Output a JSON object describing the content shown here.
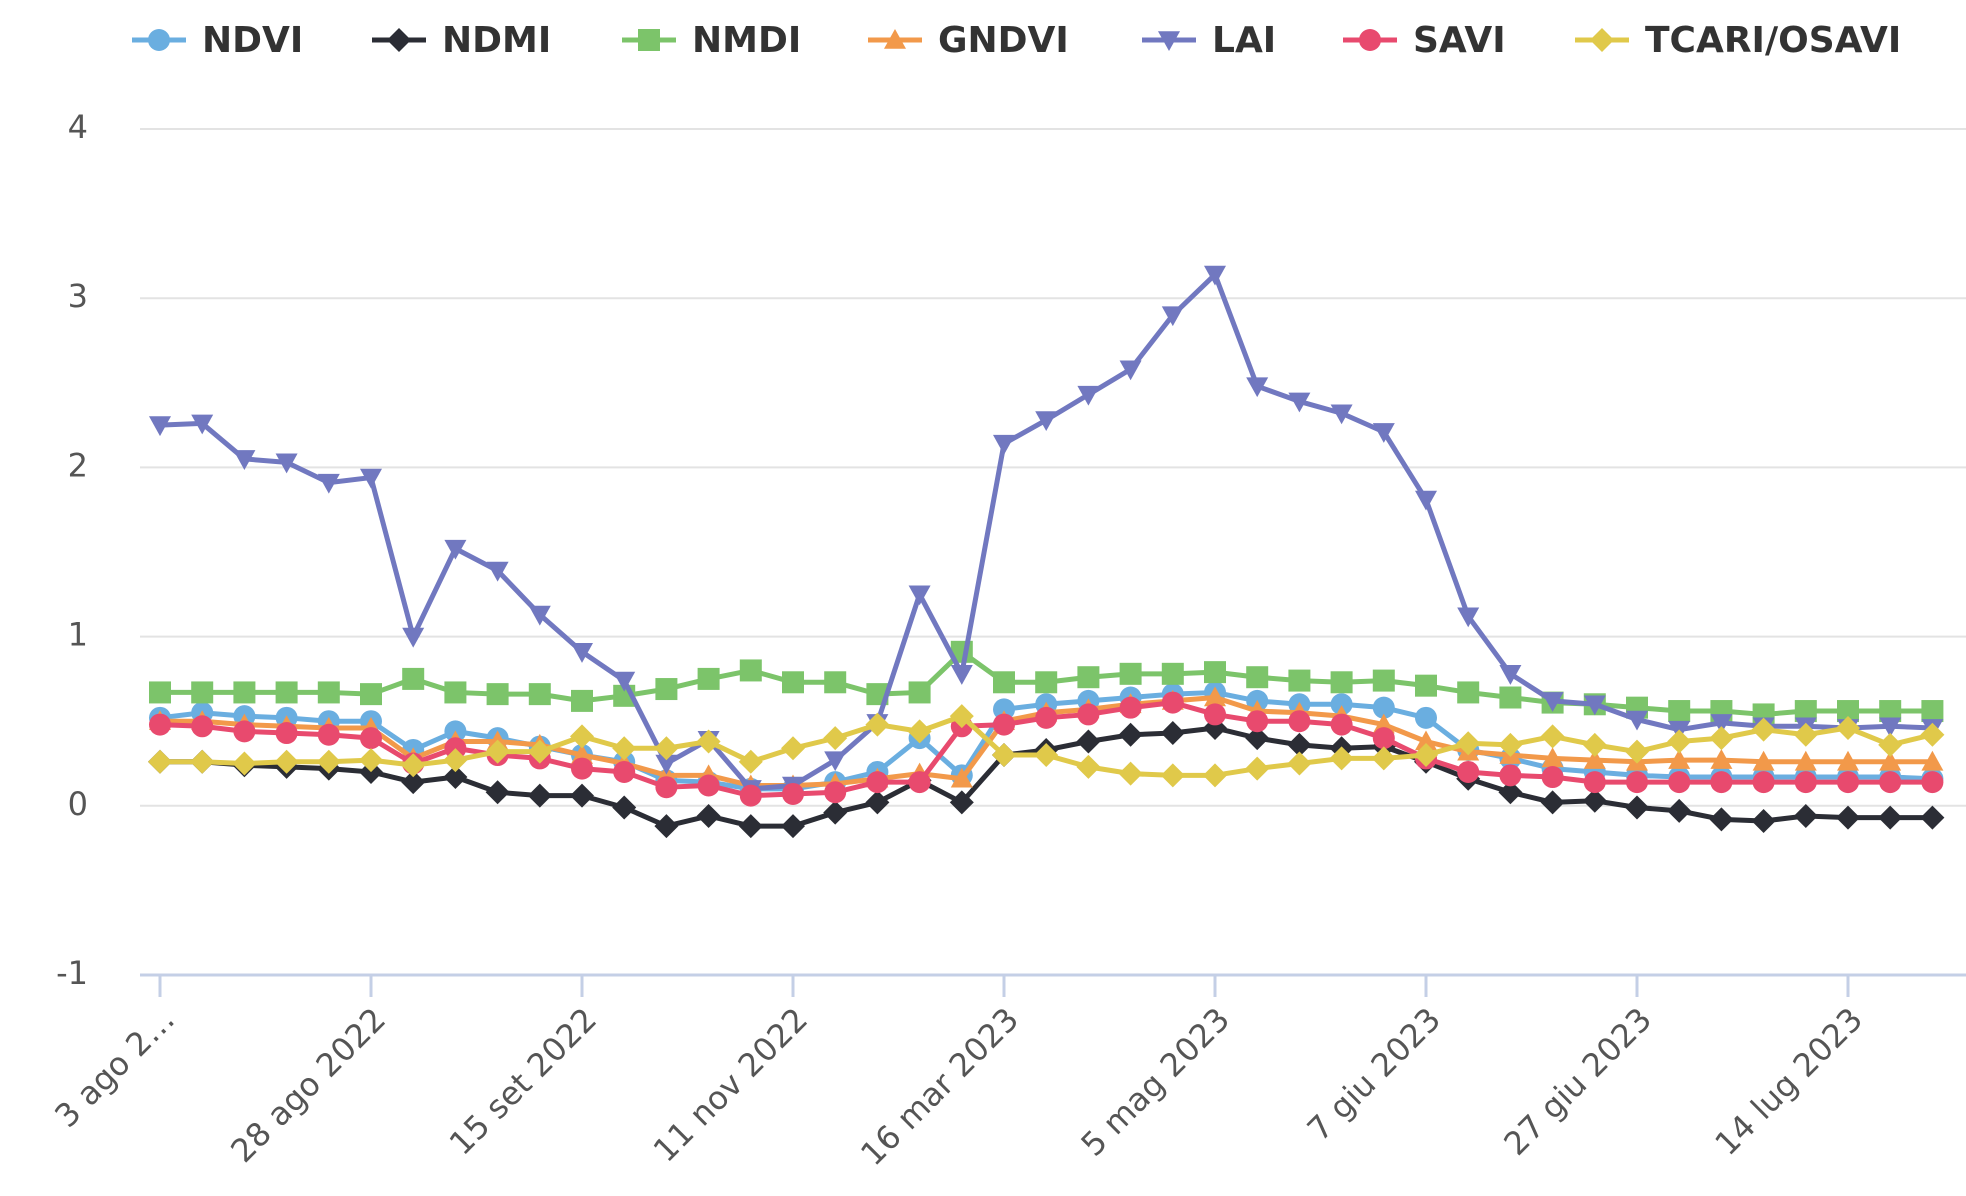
{
  "chart_data": {
    "type": "line",
    "categories": [
      "3 ago 2…",
      null,
      null,
      null,
      null,
      "28 ago 2022",
      null,
      null,
      null,
      null,
      "15 set 2022",
      null,
      null,
      null,
      null,
      "11 nov 2022",
      null,
      null,
      null,
      null,
      "16 mar 2023",
      null,
      null,
      null,
      null,
      "5 mag 2023",
      null,
      null,
      null,
      null,
      "7 giu 2023",
      null,
      null,
      null,
      null,
      "27 giu 2023",
      null,
      null,
      null,
      null,
      "14 lug 2023",
      null,
      null
    ],
    "ylim": [
      -1,
      4
    ],
    "yticks": [
      -1,
      0,
      1,
      2,
      3,
      4
    ],
    "grid": true,
    "legend": "top",
    "series": [
      {
        "name": "NDVI",
        "color": "#6aaee0",
        "marker": "circle",
        "values": [
          0.52,
          0.55,
          0.53,
          0.52,
          0.5,
          0.5,
          0.33,
          0.44,
          0.4,
          0.35,
          0.3,
          0.26,
          0.15,
          0.14,
          0.1,
          0.1,
          0.14,
          0.2,
          0.4,
          0.18,
          0.57,
          0.6,
          0.62,
          0.64,
          0.66,
          0.67,
          0.62,
          0.6,
          0.6,
          0.58,
          0.52,
          0.33,
          0.28,
          0.22,
          0.2,
          0.18,
          0.17,
          0.17,
          0.17,
          0.17,
          0.17,
          0.17,
          0.16
        ]
      },
      {
        "name": "NDMI",
        "color": "#2b2d35",
        "marker": "diamond",
        "values": [
          0.26,
          0.26,
          0.24,
          0.23,
          0.22,
          0.2,
          0.14,
          0.17,
          0.08,
          0.06,
          0.06,
          -0.01,
          -0.12,
          -0.06,
          -0.12,
          -0.12,
          -0.04,
          0.02,
          0.15,
          0.02,
          0.3,
          0.33,
          0.38,
          0.42,
          0.43,
          0.46,
          0.4,
          0.36,
          0.34,
          0.35,
          0.26,
          0.16,
          0.08,
          0.02,
          0.03,
          -0.01,
          -0.03,
          -0.08,
          -0.09,
          -0.06,
          -0.07,
          -0.07,
          -0.07
        ]
      },
      {
        "name": "NMDI",
        "color": "#7cc46a",
        "marker": "square",
        "values": [
          0.67,
          0.67,
          0.67,
          0.67,
          0.67,
          0.66,
          0.75,
          0.67,
          0.66,
          0.66,
          0.62,
          0.65,
          0.69,
          0.75,
          0.8,
          0.73,
          0.73,
          0.66,
          0.67,
          0.91,
          0.73,
          0.73,
          0.76,
          0.78,
          0.78,
          0.79,
          0.76,
          0.74,
          0.73,
          0.74,
          0.71,
          0.67,
          0.64,
          0.61,
          0.6,
          0.58,
          0.56,
          0.56,
          0.54,
          0.56,
          0.56,
          0.56,
          0.56
        ]
      },
      {
        "name": "GNDVI",
        "color": "#f2994a",
        "marker": "triangle",
        "values": [
          0.5,
          0.5,
          0.48,
          0.47,
          0.46,
          0.46,
          0.28,
          0.38,
          0.38,
          0.36,
          0.3,
          0.25,
          0.18,
          0.18,
          0.12,
          0.12,
          0.13,
          0.16,
          0.19,
          0.16,
          0.5,
          0.55,
          0.57,
          0.6,
          0.62,
          0.64,
          0.56,
          0.55,
          0.53,
          0.48,
          0.38,
          0.32,
          0.3,
          0.28,
          0.27,
          0.26,
          0.27,
          0.27,
          0.26,
          0.26,
          0.26,
          0.26,
          0.26
        ]
      },
      {
        "name": "LAI",
        "color": "#7178c0",
        "marker": "triangle-down",
        "values": [
          2.25,
          2.26,
          2.05,
          2.03,
          1.91,
          1.94,
          1.0,
          1.52,
          1.39,
          1.13,
          0.91,
          0.74,
          0.25,
          0.39,
          0.1,
          0.12,
          0.27,
          0.49,
          1.25,
          0.78,
          2.14,
          2.28,
          2.43,
          2.58,
          2.9,
          3.14,
          2.48,
          2.39,
          2.32,
          2.21,
          1.81,
          1.12,
          0.78,
          0.62,
          0.6,
          0.51,
          0.45,
          0.49,
          0.47,
          0.47,
          0.46,
          0.47,
          0.46
        ]
      },
      {
        "name": "SAVI",
        "color": "#e84a6e",
        "marker": "circle",
        "values": [
          0.48,
          0.47,
          0.44,
          0.43,
          0.42,
          0.4,
          0.25,
          0.34,
          0.3,
          0.28,
          0.22,
          0.2,
          0.11,
          0.12,
          0.06,
          0.07,
          0.08,
          0.14,
          0.14,
          0.47,
          0.48,
          0.52,
          0.54,
          0.58,
          0.61,
          0.54,
          0.5,
          0.5,
          0.48,
          0.4,
          0.28,
          0.2,
          0.18,
          0.17,
          0.14,
          0.14,
          0.14,
          0.14,
          0.14,
          0.14,
          0.14,
          0.14,
          0.14
        ]
      },
      {
        "name": "TCARI/OSAVI",
        "color": "#e0c94a",
        "marker": "diamond",
        "values": [
          0.26,
          0.26,
          0.25,
          0.26,
          0.26,
          0.27,
          0.24,
          0.27,
          0.32,
          0.32,
          0.41,
          0.34,
          0.34,
          0.38,
          0.26,
          0.34,
          0.4,
          0.48,
          0.44,
          0.53,
          0.3,
          0.3,
          0.23,
          0.19,
          0.18,
          0.18,
          0.22,
          0.25,
          0.28,
          0.28,
          0.3,
          0.37,
          0.36,
          0.41,
          0.36,
          0.32,
          0.38,
          0.4,
          0.45,
          0.42,
          0.46,
          0.36,
          0.42
        ]
      }
    ]
  }
}
